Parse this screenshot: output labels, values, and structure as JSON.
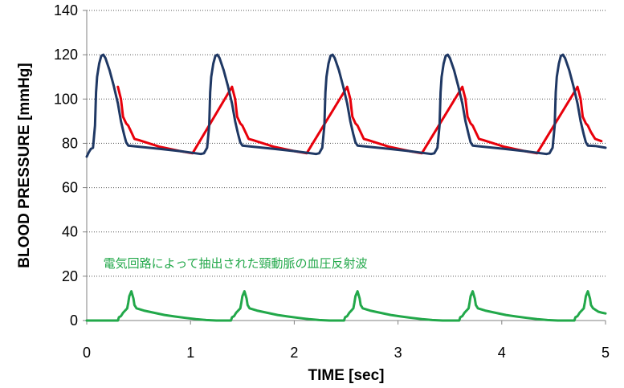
{
  "chart_data": {
    "type": "line",
    "xlabel": "TIME [sec]",
    "ylabel": "BLOOD PRESSURE [mmHg]",
    "xlim": [
      0,
      5
    ],
    "ylim": [
      0,
      140
    ],
    "x_ticks": [
      0,
      1,
      2,
      3,
      4,
      5
    ],
    "y_ticks": [
      0,
      20,
      40,
      60,
      80,
      100,
      120,
      140
    ],
    "grid": {
      "horizontal": true,
      "style": "dotted"
    },
    "annotation": {
      "text": "電気回路によって抽出された頸動脈の血圧反射波",
      "x": 0.16,
      "y": 24,
      "color": "#22a84a"
    },
    "series": [
      {
        "color": "#e8000b",
        "points": [
          [
            0.3,
            105.5
          ],
          [
            0.33,
            100
          ],
          [
            0.35,
            92
          ],
          [
            0.38,
            89
          ],
          [
            0.4,
            88
          ],
          [
            0.43,
            85
          ],
          [
            0.46,
            82
          ],
          [
            0.5,
            81.5
          ],
          [
            0.6,
            80
          ],
          [
            0.7,
            78.5
          ],
          [
            0.8,
            77.5
          ],
          [
            0.9,
            76.5
          ],
          [
            1.02,
            75.5
          ],
          [
            1.4,
            105.5
          ],
          [
            1.43,
            100
          ],
          [
            1.45,
            92
          ],
          [
            1.48,
            89
          ],
          [
            1.5,
            88
          ],
          [
            1.53,
            85
          ],
          [
            1.56,
            82
          ],
          [
            1.6,
            81.5
          ],
          [
            1.7,
            80
          ],
          [
            1.8,
            78.5
          ],
          [
            1.9,
            77.5
          ],
          [
            2.0,
            76.5
          ],
          [
            2.12,
            75.5
          ],
          [
            2.51,
            105.5
          ],
          [
            2.54,
            100
          ],
          [
            2.56,
            92
          ],
          [
            2.59,
            89
          ],
          [
            2.61,
            88
          ],
          [
            2.64,
            85
          ],
          [
            2.67,
            82
          ],
          [
            2.71,
            81.5
          ],
          [
            2.81,
            80
          ],
          [
            2.91,
            78.5
          ],
          [
            3.01,
            77.5
          ],
          [
            3.11,
            76.5
          ],
          [
            3.23,
            75.5
          ],
          [
            3.62,
            105.5
          ],
          [
            3.65,
            100
          ],
          [
            3.67,
            92
          ],
          [
            3.7,
            89
          ],
          [
            3.72,
            88
          ],
          [
            3.75,
            85
          ],
          [
            3.78,
            82
          ],
          [
            3.82,
            81.5
          ],
          [
            3.92,
            80
          ],
          [
            4.02,
            78.5
          ],
          [
            4.12,
            77.5
          ],
          [
            4.22,
            76.5
          ],
          [
            4.34,
            75.5
          ],
          [
            4.73,
            105.5
          ],
          [
            4.76,
            100
          ],
          [
            4.78,
            92
          ],
          [
            4.81,
            89
          ],
          [
            4.83,
            88
          ],
          [
            4.86,
            85
          ],
          [
            4.9,
            82
          ],
          [
            4.96,
            81
          ]
        ]
      },
      {
        "color": "#1f3864",
        "points": [
          [
            0.0,
            74
          ],
          [
            0.02,
            76
          ],
          [
            0.04,
            77.5
          ],
          [
            0.06,
            78
          ],
          [
            0.08,
            88
          ],
          [
            0.09,
            103
          ],
          [
            0.1,
            110
          ],
          [
            0.12,
            116
          ],
          [
            0.14,
            119.5
          ],
          [
            0.16,
            120
          ],
          [
            0.18,
            118.5
          ],
          [
            0.22,
            113
          ],
          [
            0.26,
            106
          ],
          [
            0.3,
            98
          ],
          [
            0.33,
            90
          ],
          [
            0.36,
            84
          ],
          [
            0.38,
            80.5
          ],
          [
            0.4,
            79
          ],
          [
            0.5,
            78.5
          ],
          [
            0.7,
            77.5
          ],
          [
            0.9,
            76.5
          ],
          [
            1.1,
            75.2
          ],
          [
            1.13,
            75.5
          ],
          [
            1.16,
            78
          ],
          [
            1.18,
            88
          ],
          [
            1.19,
            103
          ],
          [
            1.2,
            110
          ],
          [
            1.22,
            116
          ],
          [
            1.24,
            119.5
          ],
          [
            1.26,
            120
          ],
          [
            1.28,
            118.5
          ],
          [
            1.32,
            113
          ],
          [
            1.36,
            106
          ],
          [
            1.4,
            98
          ],
          [
            1.43,
            90
          ],
          [
            1.46,
            84
          ],
          [
            1.48,
            80.5
          ],
          [
            1.5,
            79
          ],
          [
            1.6,
            78.5
          ],
          [
            1.8,
            77.5
          ],
          [
            2.0,
            76.5
          ],
          [
            2.21,
            75.2
          ],
          [
            2.24,
            75.5
          ],
          [
            2.27,
            78
          ],
          [
            2.29,
            88
          ],
          [
            2.3,
            103
          ],
          [
            2.31,
            110
          ],
          [
            2.33,
            116
          ],
          [
            2.35,
            119.5
          ],
          [
            2.37,
            120
          ],
          [
            2.39,
            118.5
          ],
          [
            2.43,
            113
          ],
          [
            2.47,
            106
          ],
          [
            2.51,
            98
          ],
          [
            2.54,
            90
          ],
          [
            2.57,
            84
          ],
          [
            2.59,
            80.5
          ],
          [
            2.61,
            79
          ],
          [
            2.71,
            78.5
          ],
          [
            2.91,
            77.5
          ],
          [
            3.11,
            76.5
          ],
          [
            3.32,
            75.2
          ],
          [
            3.35,
            75.5
          ],
          [
            3.38,
            78
          ],
          [
            3.4,
            88
          ],
          [
            3.41,
            103
          ],
          [
            3.42,
            110
          ],
          [
            3.44,
            116
          ],
          [
            3.46,
            119.5
          ],
          [
            3.48,
            120
          ],
          [
            3.5,
            118.5
          ],
          [
            3.54,
            113
          ],
          [
            3.58,
            106
          ],
          [
            3.62,
            98
          ],
          [
            3.65,
            90
          ],
          [
            3.68,
            84
          ],
          [
            3.7,
            80.5
          ],
          [
            3.72,
            79
          ],
          [
            3.82,
            78.5
          ],
          [
            4.02,
            77.5
          ],
          [
            4.22,
            76.5
          ],
          [
            4.43,
            75.2
          ],
          [
            4.46,
            75.5
          ],
          [
            4.49,
            78
          ],
          [
            4.51,
            88
          ],
          [
            4.52,
            103
          ],
          [
            4.53,
            110
          ],
          [
            4.55,
            116
          ],
          [
            4.57,
            119.5
          ],
          [
            4.59,
            120
          ],
          [
            4.61,
            118.5
          ],
          [
            4.65,
            113
          ],
          [
            4.69,
            106
          ],
          [
            4.73,
            98
          ],
          [
            4.76,
            90
          ],
          [
            4.79,
            84
          ],
          [
            4.81,
            80.5
          ],
          [
            4.83,
            79
          ],
          [
            4.9,
            78.8
          ],
          [
            5.0,
            78
          ]
        ]
      },
      {
        "color": "#22a84a",
        "points": [
          [
            0.0,
            0
          ],
          [
            0.3,
            0
          ],
          [
            0.31,
            1.5
          ],
          [
            0.33,
            2
          ],
          [
            0.35,
            3.5
          ],
          [
            0.37,
            4.5
          ],
          [
            0.39,
            5.5
          ],
          [
            0.4,
            8
          ],
          [
            0.41,
            11
          ],
          [
            0.43,
            13.2
          ],
          [
            0.45,
            10
          ],
          [
            0.46,
            7
          ],
          [
            0.48,
            5.5
          ],
          [
            0.55,
            4.5
          ],
          [
            0.65,
            3.5
          ],
          [
            0.75,
            2.5
          ],
          [
            0.85,
            1.8
          ],
          [
            0.95,
            1.2
          ],
          [
            1.05,
            0.6
          ],
          [
            1.15,
            0.2
          ],
          [
            1.25,
            0
          ],
          [
            1.39,
            0
          ],
          [
            1.4,
            1.5
          ],
          [
            1.42,
            2
          ],
          [
            1.44,
            3.5
          ],
          [
            1.46,
            4.5
          ],
          [
            1.48,
            5.5
          ],
          [
            1.49,
            8
          ],
          [
            1.5,
            11
          ],
          [
            1.52,
            13.2
          ],
          [
            1.54,
            10
          ],
          [
            1.55,
            7
          ],
          [
            1.57,
            5.5
          ],
          [
            1.64,
            4.5
          ],
          [
            1.74,
            3.5
          ],
          [
            1.84,
            2.5
          ],
          [
            1.94,
            1.8
          ],
          [
            2.04,
            1.2
          ],
          [
            2.14,
            0.6
          ],
          [
            2.24,
            0.2
          ],
          [
            2.34,
            0
          ],
          [
            2.48,
            0
          ],
          [
            2.49,
            1.5
          ],
          [
            2.51,
            2
          ],
          [
            2.53,
            3.5
          ],
          [
            2.55,
            4.5
          ],
          [
            2.57,
            5.5
          ],
          [
            2.58,
            8
          ],
          [
            2.59,
            11
          ],
          [
            2.61,
            13.2
          ],
          [
            2.63,
            10
          ],
          [
            2.64,
            7
          ],
          [
            2.66,
            5.5
          ],
          [
            2.73,
            4.5
          ],
          [
            2.83,
            3.5
          ],
          [
            2.93,
            2.5
          ],
          [
            3.03,
            1.8
          ],
          [
            3.13,
            1.2
          ],
          [
            3.23,
            0.6
          ],
          [
            3.33,
            0.2
          ],
          [
            3.43,
            0
          ],
          [
            3.59,
            0
          ],
          [
            3.6,
            1.5
          ],
          [
            3.62,
            2
          ],
          [
            3.64,
            3.5
          ],
          [
            3.66,
            4.5
          ],
          [
            3.68,
            5.5
          ],
          [
            3.69,
            8
          ],
          [
            3.7,
            11
          ],
          [
            3.72,
            13.2
          ],
          [
            3.74,
            10
          ],
          [
            3.75,
            7
          ],
          [
            3.77,
            5.5
          ],
          [
            3.84,
            4.5
          ],
          [
            3.94,
            3.5
          ],
          [
            4.04,
            2.5
          ],
          [
            4.14,
            1.8
          ],
          [
            4.24,
            1.2
          ],
          [
            4.34,
            0.6
          ],
          [
            4.44,
            0.2
          ],
          [
            4.54,
            0
          ],
          [
            4.7,
            0
          ],
          [
            4.71,
            1.5
          ],
          [
            4.73,
            2
          ],
          [
            4.75,
            3.5
          ],
          [
            4.77,
            4.5
          ],
          [
            4.79,
            5.5
          ],
          [
            4.8,
            8
          ],
          [
            4.81,
            11
          ],
          [
            4.83,
            13.2
          ],
          [
            4.85,
            10
          ],
          [
            4.86,
            7
          ],
          [
            4.88,
            5.5
          ],
          [
            4.93,
            4
          ],
          [
            4.97,
            3.5
          ],
          [
            5.0,
            3.2
          ]
        ]
      }
    ]
  }
}
